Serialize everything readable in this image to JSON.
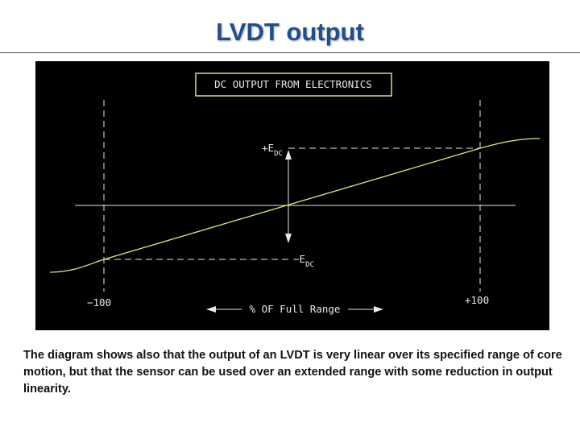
{
  "header": {
    "title": "LVDT output"
  },
  "diagram": {
    "title": "DC OUTPUT FROM ELECTRONICS",
    "pos_label": "+E",
    "pos_sub": "DC",
    "neg_label": "−E",
    "neg_sub": "DC",
    "left_limit": "−100",
    "right_limit": "+100",
    "range_label": "% OF Full Range"
  },
  "caption": "The diagram shows also that the output of an LVDT is very linear over its specified range of core motion, but that the sensor can be used over an extended range with some reduction in output linearity."
}
